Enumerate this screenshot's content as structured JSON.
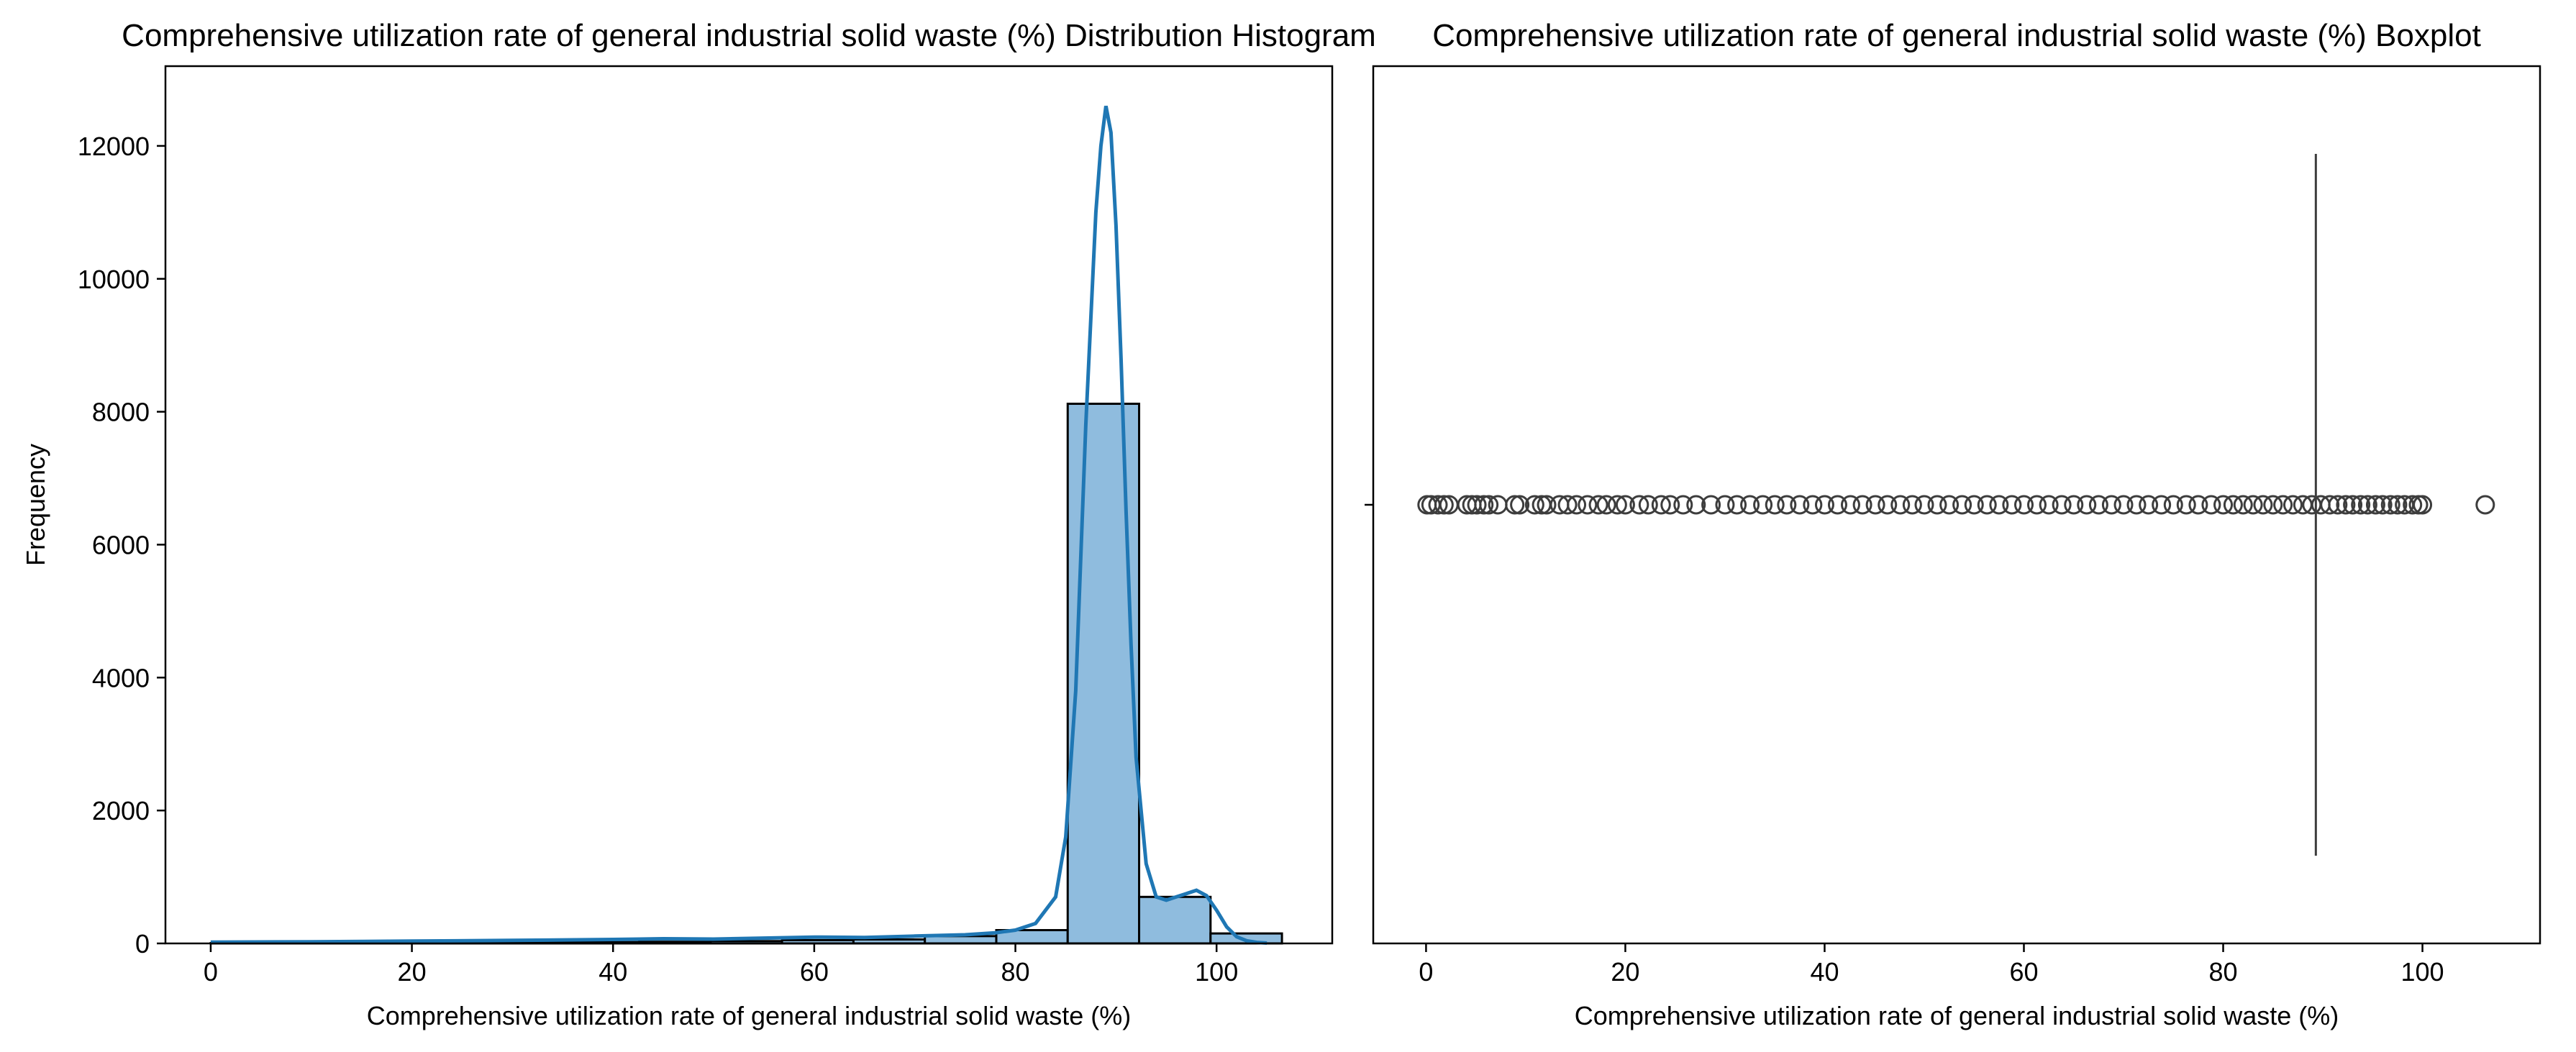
{
  "chart_data": [
    {
      "type": "histogram",
      "title": "Comprehensive utilization rate of general industrial solid waste (%) Distribution Histogram",
      "xlabel": "Comprehensive utilization rate of general industrial solid waste (%)",
      "ylabel": "Frequency",
      "xlim": [
        -4.5,
        111.5
      ],
      "ylim": [
        0,
        13200
      ],
      "xticks": [
        0,
        20,
        40,
        60,
        80,
        100
      ],
      "yticks": [
        0,
        2000,
        4000,
        6000,
        8000,
        10000,
        12000
      ],
      "grid": false,
      "bar_color": "#8fbcde",
      "line_color": "#1f77b4",
      "bins": [
        {
          "x0": 0.0,
          "x1": 7.1,
          "count": 5
        },
        {
          "x0": 7.1,
          "x1": 14.2,
          "count": 5
        },
        {
          "x0": 14.2,
          "x1": 21.3,
          "count": 10
        },
        {
          "x0": 21.3,
          "x1": 28.4,
          "count": 10
        },
        {
          "x0": 28.4,
          "x1": 35.5,
          "count": 15
        },
        {
          "x0": 35.5,
          "x1": 42.6,
          "count": 20
        },
        {
          "x0": 42.6,
          "x1": 49.7,
          "count": 25
        },
        {
          "x0": 49.7,
          "x1": 56.8,
          "count": 35
        },
        {
          "x0": 56.8,
          "x1": 63.9,
          "count": 50
        },
        {
          "x0": 63.9,
          "x1": 71.0,
          "count": 60
        },
        {
          "x0": 71.0,
          "x1": 78.1,
          "count": 110
        },
        {
          "x0": 78.1,
          "x1": 85.2,
          "count": 200
        },
        {
          "x0": 85.2,
          "x1": 92.3,
          "count": 8120
        },
        {
          "x0": 92.3,
          "x1": 99.4,
          "count": 700
        },
        {
          "x0": 99.4,
          "x1": 106.5,
          "count": 150
        }
      ],
      "kde": {
        "x": [
          0,
          10,
          20,
          30,
          40,
          45,
          50,
          55,
          60,
          65,
          70,
          75,
          78,
          80,
          82,
          84,
          85,
          86,
          87,
          88,
          88.5,
          89,
          89.5,
          90,
          90.5,
          91,
          91.5,
          92,
          93,
          94,
          95,
          96,
          97,
          98,
          99,
          100,
          101,
          102,
          103,
          104,
          105
        ],
        "y": [
          20,
          25,
          35,
          45,
          60,
          70,
          65,
          80,
          95,
          90,
          110,
          130,
          160,
          200,
          300,
          700,
          1600,
          3800,
          7800,
          11000,
          12000,
          12600,
          12200,
          10800,
          8800,
          6500,
          4500,
          2800,
          1200,
          700,
          650,
          700,
          750,
          800,
          720,
          500,
          250,
          100,
          40,
          15,
          5
        ]
      }
    },
    {
      "type": "boxplot",
      "title": "Comprehensive utilization rate of general industrial solid waste (%) Boxplot",
      "xlabel": "Comprehensive utilization rate of general industrial solid waste (%)",
      "xlim": [
        -5.3,
        111.8
      ],
      "xticks": [
        0,
        20,
        40,
        60,
        80,
        100
      ],
      "grid": false,
      "box_color": "#3d3d3d",
      "median": 89.3,
      "outliers": [
        0.1,
        0.5,
        1.2,
        1.8,
        2.3,
        4.1,
        4.6,
        5.1,
        5.8,
        6.3,
        7.2,
        8.9,
        9.4,
        10.9,
        11.6,
        12.1,
        13.4,
        14.2,
        15.1,
        16.2,
        17.3,
        18.1,
        19.2,
        20.0,
        21.4,
        22.3,
        23.6,
        24.5,
        25.8,
        27.1,
        28.6,
        30.0,
        31.2,
        32.5,
        33.8,
        35.0,
        36.2,
        37.5,
        38.8,
        40.0,
        41.3,
        42.6,
        43.8,
        45.1,
        46.3,
        47.6,
        48.8,
        50.0,
        51.3,
        52.5,
        53.8,
        55.0,
        56.3,
        57.5,
        58.8,
        60.0,
        61.3,
        62.5,
        63.8,
        65.0,
        66.3,
        67.5,
        68.8,
        70.0,
        71.3,
        72.5,
        73.8,
        75.0,
        76.3,
        77.5,
        78.8,
        80.0,
        81.0,
        82.0,
        83.0,
        84.0,
        85.0,
        86.0,
        87.0,
        88.0,
        88.9,
        89.8,
        90.7,
        91.5,
        92.3,
        93.0,
        93.8,
        94.5,
        95.3,
        96.0,
        96.8,
        97.5,
        98.2,
        99.0,
        99.6,
        100.0,
        106.3
      ]
    }
  ]
}
